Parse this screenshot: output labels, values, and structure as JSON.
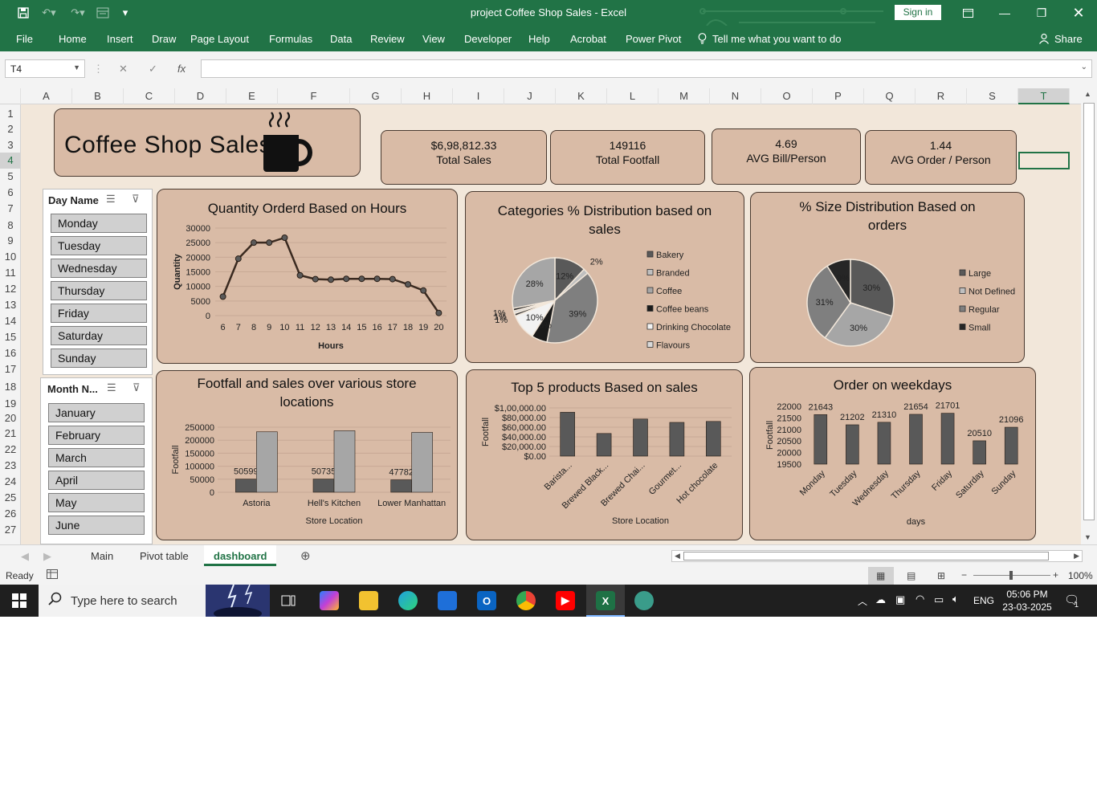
{
  "window": {
    "title": "project Coffee Shop Sales  -  Excel",
    "sign_in": "Sign in"
  },
  "ribbon_tabs": [
    "File",
    "Home",
    "Insert",
    "Draw",
    "Page Layout",
    "Formulas",
    "Data",
    "Review",
    "View",
    "Developer",
    "Help",
    "Acrobat",
    "Power Pivot",
    "Tell me what you want to do"
  ],
  "share": "Share",
  "formula_bar": {
    "name_box": "T4",
    "fx": "fx",
    "value": ""
  },
  "columns": [
    "A",
    "B",
    "C",
    "D",
    "E",
    "F",
    "G",
    "H",
    "I",
    "J",
    "K",
    "L",
    "M",
    "N",
    "O",
    "P",
    "Q",
    "R",
    "S",
    "T"
  ],
  "selected_column": "T",
  "rows": [
    "1",
    "2",
    "3",
    "4",
    "5",
    "6",
    "7",
    "8",
    "9",
    "10",
    "11",
    "12",
    "13",
    "14",
    "15",
    "16",
    "17",
    "18",
    "19",
    "20",
    "21",
    "22",
    "23",
    "24",
    "25",
    "26",
    "27"
  ],
  "dashboard": {
    "title": "Coffee Shop Sales",
    "kpis": [
      {
        "value": "$6,98,812.33",
        "label": "Total Sales"
      },
      {
        "value": "149116",
        "label": "Total Footfall"
      },
      {
        "value": "4.69",
        "label": "AVG Bill/Person"
      },
      {
        "value": "1.44",
        "label": "AVG Order / Person"
      }
    ]
  },
  "slicers": {
    "day": {
      "header": "Day Name",
      "items": [
        "Monday",
        "Tuesday",
        "Wednesday",
        "Thursday",
        "Friday",
        "Saturday",
        "Sunday"
      ]
    },
    "month": {
      "header": "Month N...",
      "items": [
        "January",
        "February",
        "March",
        "April",
        "May",
        "June"
      ]
    }
  },
  "chart_data": [
    {
      "type": "line",
      "title": "Quantity Orderd Based on Hours",
      "xlabel": "Hours",
      "ylabel": "Quantity",
      "x": [
        "6",
        "7",
        "8",
        "9",
        "10",
        "11",
        "12",
        "13",
        "14",
        "15",
        "16",
        "17",
        "18",
        "19",
        "20"
      ],
      "values": [
        6500,
        19500,
        25000,
        25000,
        26700,
        13800,
        12500,
        12300,
        12600,
        12600,
        12600,
        12500,
        10700,
        8600,
        900
      ],
      "ylim": [
        0,
        30000
      ],
      "yticks": [
        "0",
        "5000",
        "10000",
        "15000",
        "20000",
        "25000",
        "30000"
      ],
      "color": "#3a2a20"
    },
    {
      "type": "pie",
      "title": "Categories % Distribution based on sales",
      "legend": [
        "Bakery",
        "Branded",
        "Coffee",
        "Coffee beans",
        "Drinking Chocolate",
        "Flavours"
      ],
      "slices": [
        {
          "label": "12%",
          "value": 12,
          "color": "#595959"
        },
        {
          "label": "2%",
          "value": 2,
          "color": "#bfbfbf"
        },
        {
          "label": "39%",
          "value": 39,
          "color": "#7f7f7f"
        },
        {
          "label": "6%",
          "value": 6,
          "color": "#1a1a1a"
        },
        {
          "label": "10%",
          "value": 10,
          "color": "#f2f2f2"
        },
        {
          "label": "1%",
          "value": 1,
          "color": "#3a3a3a"
        },
        {
          "label": "1%",
          "value": 1,
          "color": "#d9d9d9"
        },
        {
          "label": "1%",
          "value": 1,
          "color": "#262626"
        },
        {
          "label": "28%",
          "value": 28,
          "color": "#a6a6a6"
        }
      ],
      "legend_colors": [
        "#595959",
        "#bfbfbf",
        "#a6a6a6",
        "#1a1a1a",
        "#f2f2f2",
        "#d9d9d9"
      ],
      "legend_placement": "right"
    },
    {
      "type": "pie",
      "title": "% Size Distribution Based on orders",
      "legend": [
        "Large",
        "Not Defined",
        "Regular",
        "Small"
      ],
      "slices": [
        {
          "label": "30%",
          "value": 30,
          "color": "#595959"
        },
        {
          "label": "30%",
          "value": 30,
          "color": "#a6a6a6"
        },
        {
          "label": "31%",
          "value": 31,
          "color": "#7f7f7f"
        },
        {
          "label": "9%",
          "value": 9,
          "color": "#262626"
        }
      ],
      "legend_colors": [
        "#595959",
        "#bfbfbf",
        "#7f7f7f",
        "#262626"
      ],
      "legend_placement": "right"
    },
    {
      "type": "bar",
      "title": "Footfall and sales over various store locations",
      "xlabel": "Store Location",
      "ylabel": "Footfall",
      "categories": [
        "Astoria",
        "Hell's Kitchen",
        "Lower Manhattan"
      ],
      "series": [
        {
          "values": [
            50599,
            50735,
            47782
          ],
          "labels": [
            "50599",
            "50735",
            "47782"
          ],
          "color": "#595959"
        },
        {
          "values": [
            232243,
            236511,
            230057
          ],
          "color": "#a6a6a6"
        }
      ],
      "ylim": [
        0,
        250000
      ],
      "yticks": [
        "0",
        "50000",
        "100000",
        "150000",
        "200000",
        "250000"
      ]
    },
    {
      "type": "bar",
      "title": "Top 5 products Based on sales",
      "xlabel": "Store Location",
      "ylabel": "Footfall",
      "categories": [
        "Barista...",
        "Brewed Black...",
        "Brewed Chai...",
        "Gourmet...",
        "Hot chocolate"
      ],
      "values": [
        91000,
        47000,
        77000,
        70000,
        72000
      ],
      "ylim": [
        0,
        100000
      ],
      "yticks": [
        "$0.00",
        "$20,000.00",
        "$40,000.00",
        "$60,000.00",
        "$80,000.00",
        "$1,00,000.00"
      ],
      "color": "#595959"
    },
    {
      "type": "bar",
      "title": "Order on weekdays",
      "xlabel": "days",
      "ylabel": "Footfall",
      "categories": [
        "Monday",
        "Tuesday",
        "Wednesday",
        "Thursday",
        "Friday",
        "Saturday",
        "Sunday"
      ],
      "values": [
        21643,
        21202,
        21310,
        21654,
        21701,
        20510,
        21096
      ],
      "labels": [
        "21643",
        "21202",
        "21310",
        "21654",
        "21701",
        "20510",
        "21096"
      ],
      "ylim": [
        19500,
        22000
      ],
      "yticks": [
        "19500",
        "20000",
        "20500",
        "21000",
        "21500",
        "22000"
      ],
      "color": "#595959"
    }
  ],
  "sheet_tabs": [
    "Main",
    "Pivot table",
    "dashboard"
  ],
  "active_sheet": "dashboard",
  "status": {
    "ready": "Ready",
    "zoom": "100%"
  },
  "taskbar": {
    "search_placeholder": "Type here to search",
    "language": "ENG",
    "time": "05:06 PM",
    "date": "23-03-2025",
    "notifications": "1"
  }
}
